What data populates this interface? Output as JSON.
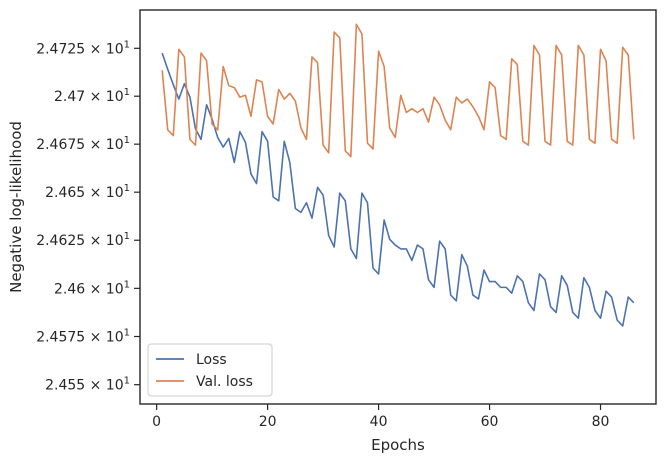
{
  "chart_data": {
    "type": "line",
    "title": "",
    "xlabel": "Epochs",
    "ylabel": "Negative log-likelihood",
    "log_y": true,
    "xlim": [
      -3,
      90
    ],
    "ylim": [
      24.54,
      24.745
    ],
    "grid": false,
    "legend_position": "lower-left",
    "x_ticks": [
      0,
      20,
      40,
      60,
      80
    ],
    "x_tick_labels": [
      "0",
      "20",
      "40",
      "60",
      "80"
    ],
    "y_ticks": [
      24.55,
      24.575,
      24.6,
      24.625,
      24.65,
      24.675,
      24.7,
      24.725
    ],
    "y_tick_labels": [
      {
        "mantissa": "2.455",
        "exp": "1"
      },
      {
        "mantissa": "2.4575",
        "exp": "1"
      },
      {
        "mantissa": "2.46",
        "exp": "1"
      },
      {
        "mantissa": "2.4625",
        "exp": "1"
      },
      {
        "mantissa": "2.465",
        "exp": "1"
      },
      {
        "mantissa": "2.4675",
        "exp": "1"
      },
      {
        "mantissa": "2.47",
        "exp": "1"
      },
      {
        "mantissa": "2.4725",
        "exp": "1"
      }
    ],
    "x_multiply_sign": "×",
    "x_base": "10",
    "series": [
      {
        "name": "Loss",
        "color": "#4c72b0",
        "x": [
          1,
          2,
          3,
          4,
          5,
          6,
          7,
          8,
          9,
          10,
          11,
          12,
          13,
          14,
          15,
          16,
          17,
          18,
          19,
          20,
          21,
          22,
          23,
          24,
          25,
          26,
          27,
          28,
          29,
          30,
          31,
          32,
          33,
          34,
          35,
          36,
          37,
          38,
          39,
          40,
          41,
          42,
          43,
          44,
          45,
          46,
          47,
          48,
          49,
          50,
          51,
          52,
          53,
          54,
          55,
          56,
          57,
          58,
          59,
          60,
          61,
          62,
          63,
          64,
          65,
          66,
          67,
          68,
          69,
          70,
          71,
          72,
          73,
          74,
          75,
          76,
          77,
          78,
          79,
          80,
          81,
          82,
          83,
          84,
          85,
          86
        ],
        "values": [
          24.7225,
          24.714,
          24.706,
          24.6985,
          24.7065,
          24.6995,
          24.683,
          24.6775,
          24.6955,
          24.688,
          24.6785,
          24.6735,
          24.678,
          24.6655,
          24.6815,
          24.676,
          24.6595,
          24.6545,
          24.6815,
          24.6765,
          24.6475,
          24.6455,
          24.6765,
          24.6655,
          24.6415,
          24.6395,
          24.6445,
          24.6365,
          24.6525,
          24.6485,
          24.6275,
          24.6215,
          24.6495,
          24.6455,
          24.6205,
          24.6155,
          24.6495,
          24.6445,
          24.6105,
          24.6075,
          24.6355,
          24.6255,
          24.6225,
          24.6205,
          24.6205,
          24.6145,
          24.6225,
          24.6205,
          24.6045,
          24.6005,
          24.6245,
          24.6205,
          24.5965,
          24.5935,
          24.6175,
          24.6115,
          24.5965,
          24.5945,
          24.6095,
          24.6035,
          24.6035,
          24.6005,
          24.6005,
          24.5975,
          24.6065,
          24.6035,
          24.5925,
          24.5885,
          24.6075,
          24.6045,
          24.5905,
          24.5875,
          24.6065,
          24.6015,
          24.5875,
          24.5845,
          24.6055,
          24.6005,
          24.5885,
          24.5845,
          24.5985,
          24.5955,
          24.5835,
          24.5805,
          24.5955,
          24.5925
        ]
      },
      {
        "name": "Val. loss",
        "color": "#dd8452",
        "x": [
          1,
          2,
          3,
          4,
          5,
          6,
          7,
          8,
          9,
          10,
          11,
          12,
          13,
          14,
          15,
          16,
          17,
          18,
          19,
          20,
          21,
          22,
          23,
          24,
          25,
          26,
          27,
          28,
          29,
          30,
          31,
          32,
          33,
          34,
          35,
          36,
          37,
          38,
          39,
          40,
          41,
          42,
          43,
          44,
          45,
          46,
          47,
          48,
          49,
          50,
          51,
          52,
          53,
          54,
          55,
          56,
          57,
          58,
          59,
          60,
          61,
          62,
          63,
          64,
          65,
          66,
          67,
          68,
          69,
          70,
          71,
          72,
          73,
          74,
          75,
          76,
          77,
          78,
          79,
          80,
          81,
          82,
          83,
          84,
          85,
          86
        ],
        "values": [
          24.7135,
          24.6825,
          24.6795,
          24.7245,
          24.7205,
          24.6775,
          24.6745,
          24.7225,
          24.7185,
          24.6855,
          24.6825,
          24.7155,
          24.7055,
          24.7045,
          24.6995,
          24.7005,
          24.6895,
          24.7085,
          24.7075,
          24.6895,
          24.6855,
          24.7035,
          24.6985,
          24.7015,
          24.6975,
          24.6835,
          24.6775,
          24.7205,
          24.7175,
          24.6745,
          24.6705,
          24.7335,
          24.7305,
          24.6715,
          24.6685,
          24.7375,
          24.7325,
          24.6755,
          24.6725,
          24.7235,
          24.7155,
          24.6835,
          24.6785,
          24.7005,
          24.6915,
          24.6935,
          24.6915,
          24.6935,
          24.6865,
          24.6995,
          24.6955,
          24.6875,
          24.6825,
          24.6995,
          24.6965,
          24.6985,
          24.6945,
          24.6895,
          24.6825,
          24.7075,
          24.7045,
          24.6795,
          24.6775,
          24.7195,
          24.7165,
          24.6765,
          24.6745,
          24.7265,
          24.7215,
          24.6765,
          24.6745,
          24.7265,
          24.7215,
          24.6765,
          24.6745,
          24.7265,
          24.7215,
          24.6775,
          24.6755,
          24.7245,
          24.7185,
          24.6775,
          24.6755,
          24.7255,
          24.7215,
          24.6775
        ]
      }
    ]
  }
}
